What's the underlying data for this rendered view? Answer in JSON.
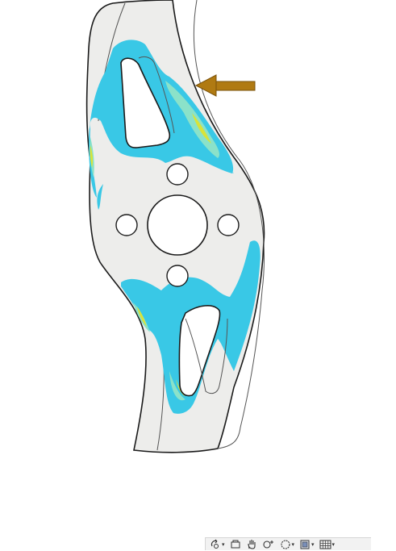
{
  "viewport": {
    "background": "#ffffff",
    "part_fill": "#ededeb",
    "outline_color": "#1a1a1a",
    "deformed_outline_color": "#666666",
    "stress_colors": {
      "low": "#39c8e6",
      "mid": "#8be2c9",
      "high": "#d8e33a"
    },
    "load_arrow_color": "#b07a12"
  },
  "toolbar": {
    "buttons": [
      {
        "icon": "rotate-view-icon",
        "dropdown": true
      },
      {
        "icon": "pan-icon",
        "dropdown": false
      },
      {
        "icon": "hand-icon",
        "dropdown": false
      },
      {
        "icon": "zoom-icon",
        "dropdown": false
      },
      {
        "icon": "zoom-window-icon",
        "dropdown": true
      },
      {
        "icon": "view-cube-icon",
        "dropdown": true
      },
      {
        "icon": "grid-icon",
        "dropdown": true
      }
    ]
  }
}
